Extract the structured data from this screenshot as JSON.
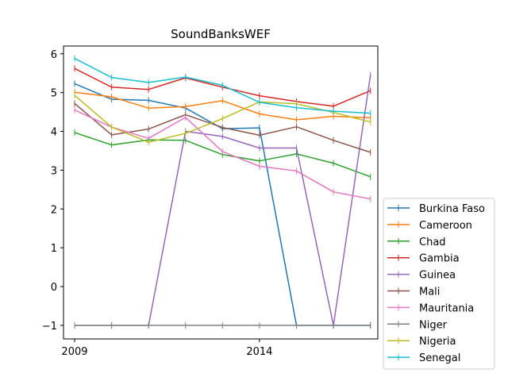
{
  "chart_data": {
    "type": "line",
    "title": "SoundBanksWEF",
    "xlabel": "",
    "ylabel": "",
    "x": [
      2009,
      2010,
      2011,
      2012,
      2013,
      2014,
      2015,
      2016,
      2017
    ],
    "xlim": [
      2008.7,
      2017.2
    ],
    "ylim": [
      -1.35,
      6.2
    ],
    "xticks": [
      2009,
      2014
    ],
    "xtick_labels": [
      "2009",
      "2014"
    ],
    "yticks": [
      -1,
      0,
      1,
      2,
      3,
      4,
      5,
      6
    ],
    "ytick_labels": [
      "−1",
      "0",
      "1",
      "2",
      "3",
      "4",
      "5",
      "6"
    ],
    "grid": false,
    "legend_position": "outside-lower-right",
    "series": [
      {
        "name": "Burkina Faso",
        "color": "#1f77b4",
        "values": [
          5.23,
          4.83,
          4.8,
          4.6,
          4.07,
          4.09,
          -1.0,
          -1.0,
          -1.0
        ]
      },
      {
        "name": "Cameroon",
        "color": "#ff7f0e",
        "values": [
          5.01,
          4.89,
          4.6,
          4.64,
          4.79,
          4.45,
          4.3,
          4.39,
          4.35
        ]
      },
      {
        "name": "Chad",
        "color": "#2ca02c",
        "values": [
          3.97,
          3.65,
          3.78,
          3.77,
          3.4,
          3.24,
          3.42,
          3.18,
          2.83
        ]
      },
      {
        "name": "Gambia",
        "color": "#d62728",
        "values": [
          5.62,
          5.14,
          5.08,
          5.38,
          5.14,
          4.92,
          4.77,
          4.65,
          5.05
        ]
      },
      {
        "name": "Guinea",
        "color": "#9467bd",
        "values": [
          -1.0,
          -1.0,
          -1.0,
          4.0,
          3.87,
          3.57,
          3.57,
          -1.0,
          5.45
        ]
      },
      {
        "name": "Mali",
        "color": "#8c564b",
        "values": [
          4.72,
          3.91,
          4.06,
          4.43,
          4.1,
          3.9,
          4.12,
          3.77,
          3.46
        ]
      },
      {
        "name": "Mauritania",
        "color": "#e377c2",
        "values": [
          4.55,
          4.11,
          3.82,
          4.36,
          3.48,
          3.1,
          2.98,
          2.44,
          2.26
        ]
      },
      {
        "name": "Niger",
        "color": "#7f7f7f",
        "values": [
          -1.0,
          -1.0,
          -1.0,
          -1.0,
          -1.0,
          -1.0,
          -1.0,
          -1.0,
          -1.0
        ]
      },
      {
        "name": "Nigeria",
        "color": "#bcbd22",
        "values": [
          4.93,
          4.11,
          3.72,
          3.95,
          4.33,
          4.76,
          4.71,
          4.49,
          4.24
        ]
      },
      {
        "name": "Senegal",
        "color": "#17becf",
        "values": [
          5.88,
          5.39,
          5.26,
          5.4,
          5.19,
          4.75,
          4.61,
          4.52,
          4.47
        ]
      }
    ]
  }
}
